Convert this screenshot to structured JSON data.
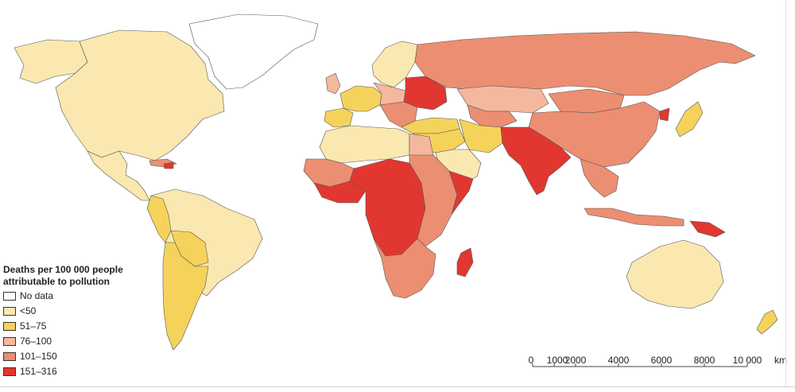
{
  "legend": {
    "title_line1": "Deaths per 100 000 people",
    "title_line2": "attributable to pollution",
    "classes": [
      {
        "label": "No data",
        "color": "#ffffff"
      },
      {
        "label": "<50",
        "color": "#fbe8b0"
      },
      {
        "label": "51–75",
        "color": "#f5d35b"
      },
      {
        "label": "76–100",
        "color": "#f4b89c"
      },
      {
        "label": "101–150",
        "color": "#ec8e72"
      },
      {
        "label": "151–316",
        "color": "#e23730"
      }
    ]
  },
  "scale_bar": {
    "ticks": [
      "0",
      "1000",
      "2000",
      "4000",
      "6000",
      "8000",
      "10 000"
    ],
    "tick_values": [
      0,
      1000,
      2000,
      4000,
      6000,
      8000,
      10000
    ],
    "unit": "km"
  },
  "regions": {
    "greenland": "No data",
    "north-america": "<50",
    "alaska": "<50",
    "mexico-central-america": "<50",
    "caribbean": "101–150",
    "haiti": "151–316",
    "south-america": "<50",
    "andes-west": "51–75",
    "argentina": "51–75",
    "bolivia-paraguay": "51–75",
    "iberia": "51–75",
    "western-europe": "51–75",
    "uk-ireland": "76–100",
    "scandinavia": "<50",
    "central-europe": "76–100",
    "eastern-europe": "151–316",
    "balkans": "101–150",
    "turkey": "51–75",
    "russia": "101–150",
    "kazakhstan": "76–100",
    "central-asia": "101–150",
    "china": "101–150",
    "mongolia": "101–150",
    "north-korea": "151–316",
    "japan": "51–75",
    "middle-east": "51–75",
    "iran": "51–75",
    "arabian-peninsula": "<50",
    "india-pakistan": "151–316",
    "southeast-asia": "101–150",
    "indonesia": "101–150",
    "papua-new-guinea": "151–316",
    "australia": "<50",
    "new-zealand": "51–75",
    "north-africa": "<50",
    "egypt": "76–100",
    "sahel-west": "101–150",
    "west-africa-coast": "151–316",
    "central-africa": "151–316",
    "east-africa": "101–150",
    "somalia": "151–316",
    "southern-africa": "101–150",
    "madagascar": "151–316"
  }
}
